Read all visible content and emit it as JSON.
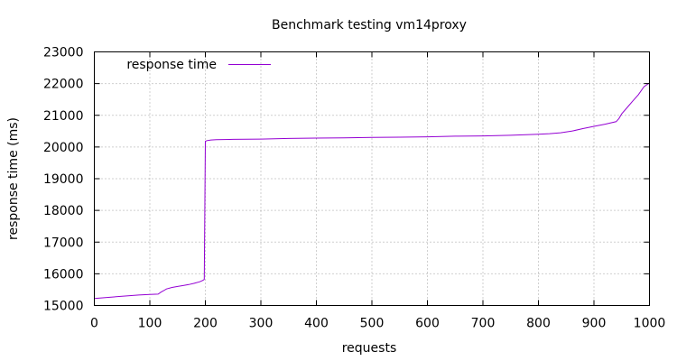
{
  "chart_data": {
    "type": "line",
    "title": "Benchmark testing vm14proxy",
    "xlabel": "requests",
    "ylabel": "response time (ms)",
    "xlim": [
      0,
      1000
    ],
    "ylim": [
      15000,
      23000
    ],
    "xticks": [
      0,
      100,
      200,
      300,
      400,
      500,
      600,
      700,
      800,
      900,
      1000
    ],
    "yticks": [
      15000,
      16000,
      17000,
      18000,
      19000,
      20000,
      21000,
      22000,
      23000
    ],
    "grid": true,
    "legend_position": "top-left",
    "colors": {
      "series": "#9400d3",
      "grid": "#a0a0a0",
      "axis": "#000000"
    },
    "series": [
      {
        "name": "response time",
        "x": [
          0,
          20,
          50,
          80,
          100,
          115,
          120,
          125,
          130,
          140,
          150,
          160,
          170,
          180,
          190,
          195,
          198,
          199,
          200,
          203,
          210,
          220,
          250,
          300,
          350,
          400,
          450,
          500,
          550,
          600,
          650,
          700,
          750,
          800,
          820,
          840,
          860,
          880,
          900,
          920,
          940,
          945,
          950,
          960,
          970,
          980,
          990,
          1000
        ],
        "y": [
          15220,
          15250,
          15290,
          15330,
          15350,
          15360,
          15420,
          15470,
          15520,
          15570,
          15600,
          15630,
          15660,
          15700,
          15750,
          15790,
          15820,
          18000,
          20180,
          20200,
          20220,
          20230,
          20240,
          20250,
          20270,
          20280,
          20290,
          20300,
          20310,
          20320,
          20340,
          20350,
          20370,
          20400,
          20420,
          20450,
          20500,
          20580,
          20650,
          20720,
          20800,
          20900,
          21050,
          21250,
          21450,
          21650,
          21900,
          22020
        ]
      }
    ]
  }
}
